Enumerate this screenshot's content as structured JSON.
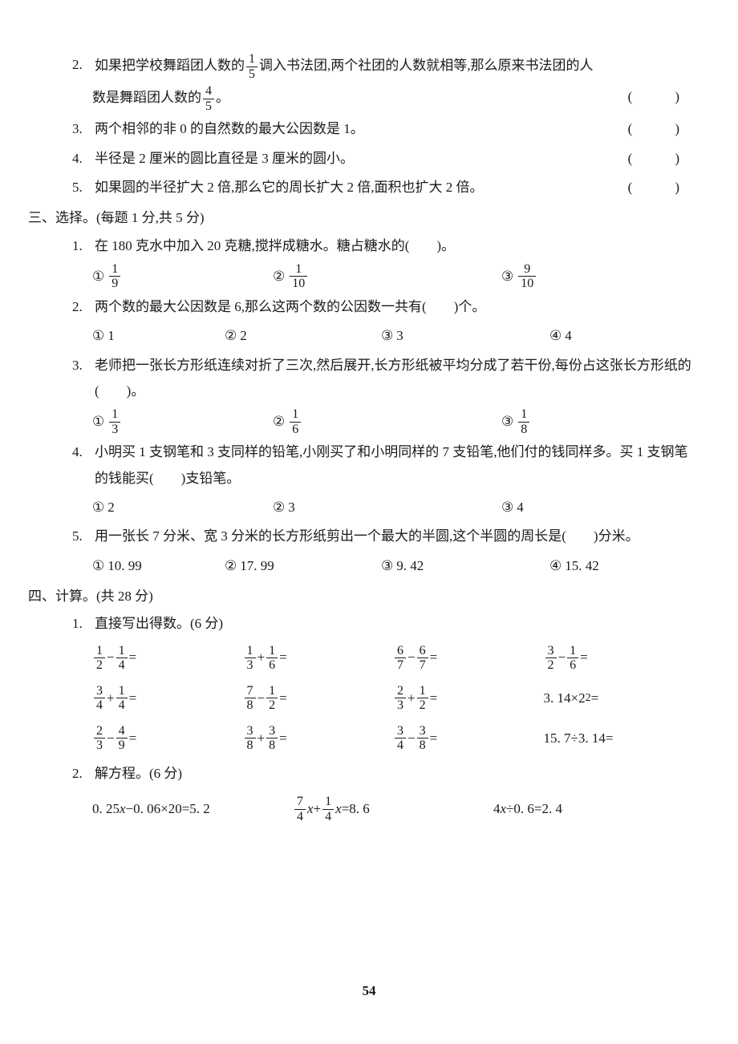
{
  "page_number": "54",
  "colors": {
    "text": "#1a1a1a",
    "background": "#ffffff"
  },
  "typography": {
    "font_family": "SimSun",
    "base_size_pt": 13
  },
  "tf_questions": [
    {
      "num": "2.",
      "line1_before": "如果把学校舞蹈团人数的",
      "frac1": {
        "num": "1",
        "den": "5"
      },
      "line1_after": "调入书法团,两个社团的人数就相等,那么原来书法团的人",
      "line2_before": "数是舞蹈团人数的",
      "frac2": {
        "num": "4",
        "den": "5"
      },
      "line2_after": "。",
      "paren": "(　)"
    },
    {
      "num": "3.",
      "text": "两个相邻的非 0 的自然数的最大公因数是 1。",
      "paren": "(　)"
    },
    {
      "num": "4.",
      "text": "半径是 2 厘米的圆比直径是 3 厘米的圆小。",
      "paren": "(　)"
    },
    {
      "num": "5.",
      "text": "如果圆的半径扩大 2 倍,那么它的周长扩大 2 倍,面积也扩大 2 倍。",
      "paren": "(　)"
    }
  ],
  "section3": {
    "header": "三、选择。",
    "note": "(每题 1 分,共 5 分)",
    "questions": [
      {
        "num": "1.",
        "text": "在 180 克水中加入 20 克糖,搅拌成糖水。糖占糖水的(　　)。",
        "options": [
          {
            "mark": "①",
            "frac": {
              "num": "1",
              "den": "9"
            }
          },
          {
            "mark": "②",
            "frac": {
              "num": "1",
              "den": "10"
            }
          },
          {
            "mark": "③",
            "frac": {
              "num": "9",
              "den": "10"
            }
          }
        ],
        "option_widths": [
          "30%",
          "38%",
          "32%"
        ]
      },
      {
        "num": "2.",
        "text": "两个数的最大公因数是 6,那么这两个数的公因数一共有(　　)个。",
        "options": [
          {
            "mark": "①",
            "text": "1"
          },
          {
            "mark": "②",
            "text": "2"
          },
          {
            "mark": "③",
            "text": "3"
          },
          {
            "mark": "④",
            "text": "4"
          }
        ],
        "option_widths": [
          "22%",
          "26%",
          "28%",
          "24%"
        ]
      },
      {
        "num": "3.",
        "text": "老师把一张长方形纸连续对折了三次,然后展开,长方形纸被平均分成了若干份,每份占这张长方形纸的(　　)。",
        "options": [
          {
            "mark": "①",
            "frac": {
              "num": "1",
              "den": "3"
            }
          },
          {
            "mark": "②",
            "frac": {
              "num": "1",
              "den": "6"
            }
          },
          {
            "mark": "③",
            "frac": {
              "num": "1",
              "den": "8"
            }
          }
        ],
        "option_widths": [
          "30%",
          "38%",
          "32%"
        ]
      },
      {
        "num": "4.",
        "text": "小明买 1 支钢笔和 3 支同样的铅笔,小刚买了和小明同样的 7 支铅笔,他们付的钱同样多。买 1 支钢笔的钱能买(　　)支铅笔。",
        "options": [
          {
            "mark": "①",
            "text": "2"
          },
          {
            "mark": "②",
            "text": "3"
          },
          {
            "mark": "③",
            "text": "4"
          }
        ],
        "option_widths": [
          "30%",
          "38%",
          "32%"
        ]
      },
      {
        "num": "5.",
        "text": "用一张长 7 分米、宽 3 分米的长方形纸剪出一个最大的半圆,这个半圆的周长是(　　)分米。",
        "options": [
          {
            "mark": "①",
            "text": "10. 99"
          },
          {
            "mark": "②",
            "text": "17. 99"
          },
          {
            "mark": "③",
            "text": "9. 42"
          },
          {
            "mark": "④",
            "text": "15. 42"
          }
        ],
        "option_widths": [
          "22%",
          "26%",
          "28%",
          "24%"
        ]
      }
    ]
  },
  "section4": {
    "header": "四、计算。",
    "note": "(共 28 分)",
    "sub1": {
      "num": "1.",
      "title": "直接写出得数。(6 分)",
      "rows": [
        [
          {
            "f1": {
              "num": "1",
              "den": "2"
            },
            "op": "−",
            "f2": {
              "num": "1",
              "den": "4"
            },
            "tail": "="
          },
          {
            "f1": {
              "num": "1",
              "den": "3"
            },
            "op": "+",
            "f2": {
              "num": "1",
              "den": "6"
            },
            "tail": "="
          },
          {
            "f1": {
              "num": "6",
              "den": "7"
            },
            "op": "−",
            "f2": {
              "num": "6",
              "den": "7"
            },
            "tail": "="
          },
          {
            "f1": {
              "num": "3",
              "den": "2"
            },
            "op": "−",
            "f2": {
              "num": "1",
              "den": "6"
            },
            "tail": "="
          }
        ],
        [
          {
            "f1": {
              "num": "3",
              "den": "4"
            },
            "op": "+",
            "f2": {
              "num": "1",
              "den": "4"
            },
            "tail": "="
          },
          {
            "f1": {
              "num": "7",
              "den": "8"
            },
            "op": "−",
            "f2": {
              "num": "1",
              "den": "2"
            },
            "tail": "="
          },
          {
            "f1": {
              "num": "2",
              "den": "3"
            },
            "op": "+",
            "f2": {
              "num": "1",
              "den": "2"
            },
            "tail": "="
          },
          {
            "plain_before": "3. 14×2",
            "sup": "2",
            "plain_after": "="
          }
        ],
        [
          {
            "f1": {
              "num": "2",
              "den": "3"
            },
            "op": "−",
            "f2": {
              "num": "4",
              "den": "9"
            },
            "tail": "="
          },
          {
            "f1": {
              "num": "3",
              "den": "8"
            },
            "op": "+",
            "f2": {
              "num": "3",
              "den": "8"
            },
            "tail": "="
          },
          {
            "f1": {
              "num": "3",
              "den": "4"
            },
            "op": "−",
            "f2": {
              "num": "3",
              "den": "8"
            },
            "tail": "="
          },
          {
            "plain_before": "15. 7÷3. 14=",
            "sup": "",
            "plain_after": ""
          }
        ]
      ]
    },
    "sub2": {
      "num": "2.",
      "title": "解方程。(6 分)",
      "equations": [
        {
          "type": "plain",
          "text": "0. 25x−0. 06×20=5. 2"
        },
        {
          "type": "frac",
          "f1": {
            "num": "7",
            "den": "4"
          },
          "mid1": "x+",
          "f2": {
            "num": "1",
            "den": "4"
          },
          "mid2": "x=8. 6"
        },
        {
          "type": "plain",
          "text": "4x÷0. 6=2. 4"
        }
      ]
    }
  }
}
